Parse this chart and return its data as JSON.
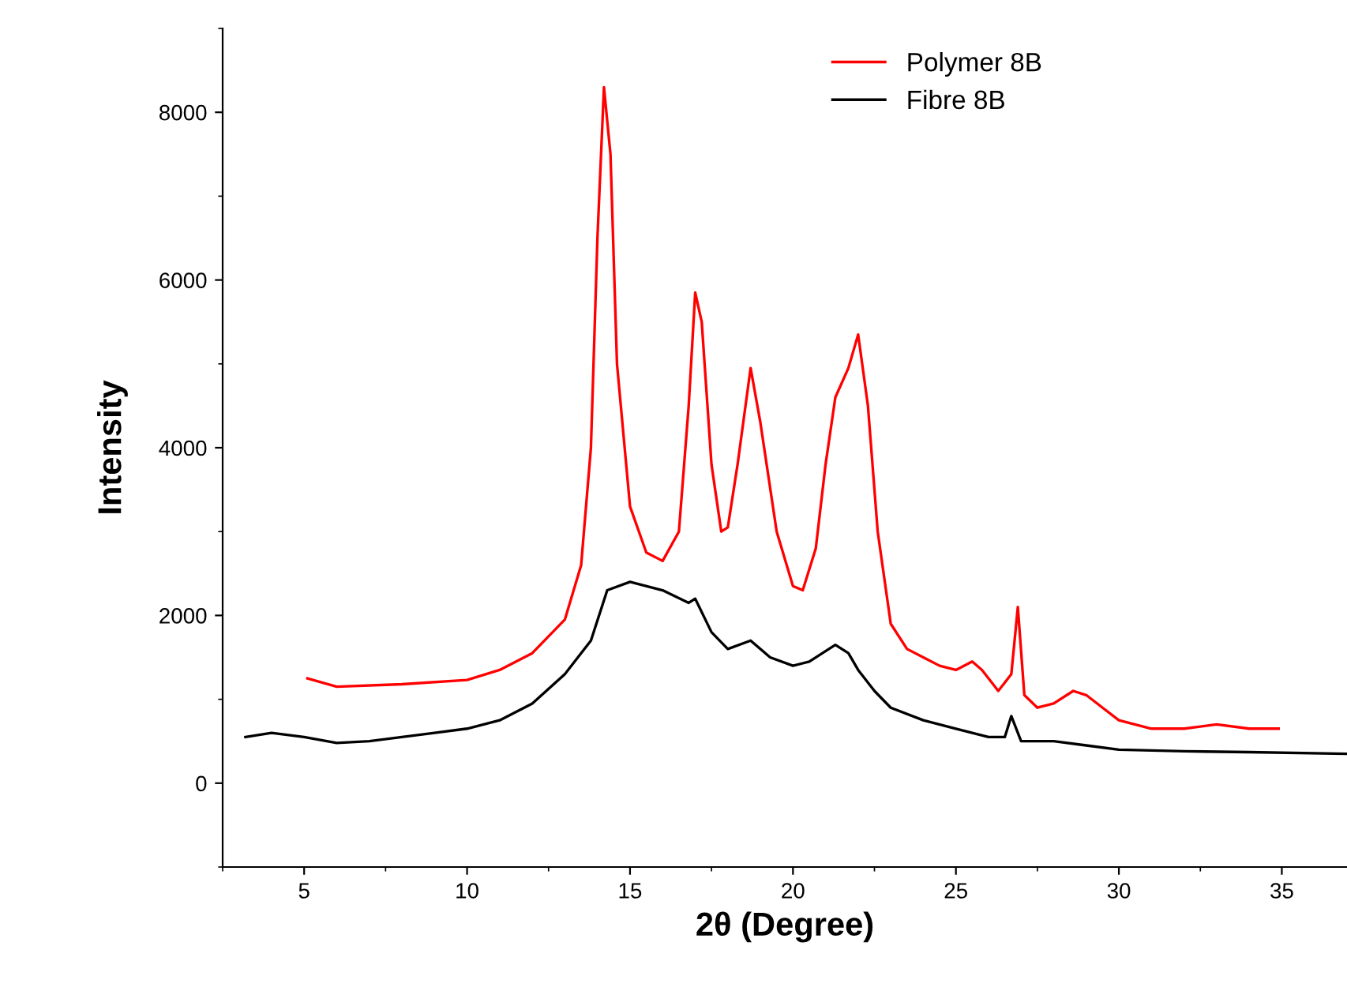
{
  "chart_data": {
    "type": "line",
    "xlabel": "2θ (Degree)",
    "ylabel": "Intensity",
    "xlim": [
      2.5,
      37
    ],
    "ylim": [
      -1000,
      9000
    ],
    "xticks": [
      5,
      10,
      15,
      20,
      25,
      30,
      35
    ],
    "yticks": [
      0,
      2000,
      4000,
      6000,
      8000
    ],
    "grid": false,
    "legend": "top right",
    "line_style": "solid",
    "marker": "none",
    "series": [
      {
        "name": "Polymer 8B",
        "color": "#ff0000",
        "x": [
          5.1,
          6,
          8,
          10,
          11,
          12,
          13,
          13.5,
          13.8,
          14.0,
          14.2,
          14.4,
          14.6,
          15,
          15.5,
          16,
          16.5,
          16.8,
          17.0,
          17.2,
          17.5,
          17.8,
          18,
          18.3,
          18.7,
          19,
          19.5,
          20,
          20.3,
          20.7,
          21,
          21.3,
          21.7,
          22,
          22.3,
          22.6,
          23,
          23.5,
          24,
          24.5,
          25,
          25.5,
          25.8,
          26.3,
          26.7,
          26.9,
          27.1,
          27.5,
          28,
          28.6,
          29,
          29.5,
          30,
          31,
          32,
          33,
          34,
          34.9
        ],
        "values": [
          1250,
          1150,
          1180,
          1230,
          1350,
          1550,
          1950,
          2600,
          4000,
          6500,
          8300,
          7500,
          5000,
          3300,
          2750,
          2650,
          3000,
          4500,
          5850,
          5500,
          3800,
          3000,
          3050,
          3800,
          4950,
          4300,
          3000,
          2350,
          2300,
          2800,
          3800,
          4600,
          4950,
          5350,
          4500,
          3000,
          1900,
          1600,
          1500,
          1400,
          1350,
          1450,
          1350,
          1100,
          1300,
          2100,
          1050,
          900,
          950,
          1100,
          1050,
          900,
          750,
          650,
          650,
          700,
          650,
          650
        ]
      },
      {
        "name": "Fibre 8B",
        "color": "#000000",
        "x": [
          3.2,
          4,
          5,
          6,
          7,
          8,
          9,
          10,
          11,
          12,
          13,
          13.8,
          14.3,
          15,
          16,
          16.8,
          17,
          17.5,
          18,
          18.7,
          19.3,
          20,
          20.5,
          21.3,
          21.7,
          22,
          22.5,
          23,
          24,
          25,
          26,
          26.5,
          26.7,
          27,
          28,
          29,
          30,
          32,
          34,
          37
        ],
        "values": [
          550,
          600,
          550,
          480,
          500,
          550,
          600,
          650,
          750,
          950,
          1300,
          1700,
          2300,
          2400,
          2300,
          2150,
          2200,
          1800,
          1600,
          1700,
          1500,
          1400,
          1450,
          1650,
          1550,
          1350,
          1100,
          900,
          750,
          650,
          550,
          550,
          800,
          500,
          500,
          450,
          400,
          380,
          370,
          350
        ]
      }
    ]
  }
}
